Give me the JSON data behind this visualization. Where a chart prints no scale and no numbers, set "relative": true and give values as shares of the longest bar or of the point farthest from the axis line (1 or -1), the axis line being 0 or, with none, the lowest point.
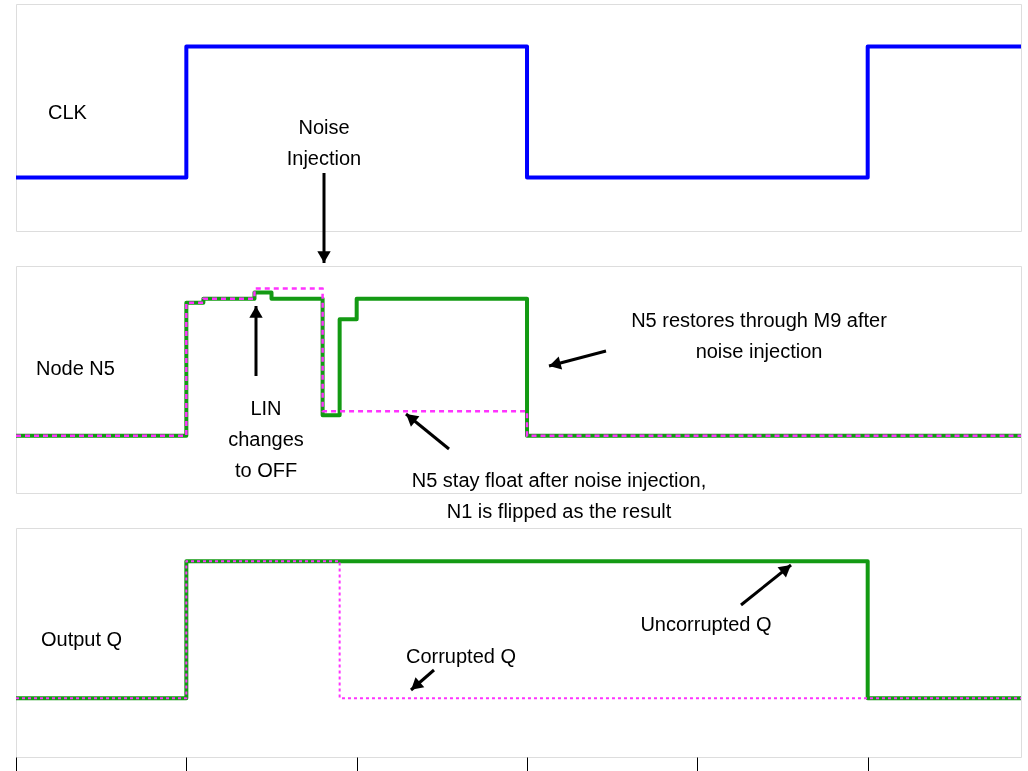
{
  "chart_data": [
    {
      "type": "step",
      "relative": true,
      "tick_labels": false,
      "categories": [
        null,
        null,
        null,
        null,
        null,
        null,
        null,
        null,
        null,
        null,
        null,
        null,
        null,
        null,
        null,
        null,
        null,
        null,
        null,
        null,
        null,
        null,
        null,
        null,
        null,
        null,
        null,
        null,
        null,
        null,
        null,
        null,
        null,
        null,
        null,
        null,
        null,
        null,
        null,
        null,
        null,
        null,
        null,
        null,
        null,
        null,
        null,
        null,
        null,
        null,
        null,
        null,
        null,
        null,
        null,
        null,
        null,
        null,
        null,
        null
      ],
      "series": [
        {
          "color": "#0000ff",
          "line_style": "solid",
          "values": [
            0.29,
            0.29,
            0.29,
            0.29,
            0.29,
            0.29,
            0.29,
            0.29,
            0.29,
            0.29,
            1,
            1,
            1,
            1,
            1,
            1,
            1,
            1,
            1,
            1,
            1,
            1,
            1,
            1,
            1,
            1,
            1,
            1,
            1,
            1,
            0.29,
            0.29,
            0.29,
            0.29,
            0.29,
            0.29,
            0.29,
            0.29,
            0.29,
            0.29,
            0.29,
            0.29,
            0.29,
            0.29,
            0.29,
            0.29,
            0.29,
            0.29,
            0.29,
            0.29,
            1,
            1,
            1,
            1,
            1,
            1,
            1,
            1,
            1,
            1
          ]
        }
      ],
      "annotations": [
        "CLK",
        "Noise\nInjection"
      ]
    },
    {
      "type": "step",
      "relative": true,
      "tick_labels": false,
      "categories": [
        null,
        null,
        null,
        null,
        null,
        null,
        null,
        null,
        null,
        null,
        null,
        null,
        null,
        null,
        null,
        null,
        null,
        null,
        null,
        null,
        null,
        null,
        null,
        null,
        null,
        null,
        null,
        null,
        null,
        null,
        null,
        null,
        null,
        null,
        null,
        null,
        null,
        null,
        null,
        null,
        null,
        null,
        null,
        null,
        null,
        null,
        null,
        null,
        null,
        null,
        null,
        null,
        null,
        null,
        null,
        null,
        null,
        null,
        null,
        null
      ],
      "series": [
        {
          "color": "#139a13",
          "line_style": "solid",
          "values": [
            0.28,
            0.28,
            0.28,
            0.28,
            0.28,
            0.28,
            0.28,
            0.28,
            0.28,
            0.28,
            0.93,
            0.95,
            0.95,
            0.95,
            0.98,
            0.95,
            0.95,
            0.95,
            0.38,
            0.85,
            0.95,
            0.95,
            0.95,
            0.95,
            0.95,
            0.95,
            0.95,
            0.95,
            0.95,
            0.95,
            0.28,
            0.28,
            0.28,
            0.28,
            0.28,
            0.28,
            0.28,
            0.28,
            0.28,
            0.28,
            0.28,
            0.28,
            0.28,
            0.28,
            0.28,
            0.28,
            0.28,
            0.28,
            0.28,
            0.28,
            0.28,
            0.28,
            0.28,
            0.28,
            0.28,
            0.28,
            0.28,
            0.28,
            0.28,
            0.28
          ]
        },
        {
          "color": "#ff33ff",
          "line_style": "dashed",
          "values": [
            0.28,
            0.28,
            0.28,
            0.28,
            0.28,
            0.28,
            0.28,
            0.28,
            0.28,
            0.28,
            0.93,
            0.95,
            0.95,
            0.95,
            1,
            1,
            1,
            1,
            0.4,
            0.4,
            0.4,
            0.4,
            0.4,
            0.4,
            0.4,
            0.4,
            0.4,
            0.4,
            0.4,
            0.4,
            0.28,
            0.28,
            0.28,
            0.28,
            0.28,
            0.28,
            0.28,
            0.28,
            0.28,
            0.28,
            0.28,
            0.28,
            0.28,
            0.28,
            0.28,
            0.28,
            0.28,
            0.28,
            0.28,
            0.28,
            0.28,
            0.28,
            0.28,
            0.28,
            0.28,
            0.28,
            0.28,
            0.28,
            0.28,
            0.28
          ]
        }
      ],
      "annotations": [
        "Node N5",
        "LIN\nchanges\nto OFF",
        "N5 restores through M9 after\nnoise injection",
        "N5 stay float after noise injection,\nN1 is flipped as the result"
      ]
    },
    {
      "type": "step",
      "relative": true,
      "tick_labels": false,
      "categories": [
        null,
        null,
        null,
        null,
        null,
        null,
        null,
        null,
        null,
        null,
        null,
        null,
        null,
        null,
        null,
        null,
        null,
        null,
        null,
        null,
        null,
        null,
        null,
        null,
        null,
        null,
        null,
        null,
        null,
        null,
        null,
        null,
        null,
        null,
        null,
        null,
        null,
        null,
        null,
        null,
        null,
        null,
        null,
        null,
        null,
        null,
        null,
        null,
        null,
        null,
        null,
        null,
        null,
        null,
        null,
        null,
        null,
        null,
        null,
        null
      ],
      "series": [
        {
          "color": "#139a13",
          "line_style": "solid",
          "values": [
            0.3,
            0.3,
            0.3,
            0.3,
            0.3,
            0.3,
            0.3,
            0.3,
            0.3,
            0.3,
            1,
            1,
            1,
            1,
            1,
            1,
            1,
            1,
            1,
            1,
            1,
            1,
            1,
            1,
            1,
            1,
            1,
            1,
            1,
            1,
            1,
            1,
            1,
            1,
            1,
            1,
            1,
            1,
            1,
            1,
            1,
            1,
            1,
            1,
            1,
            1,
            1,
            1,
            1,
            1,
            0.3,
            0.3,
            0.3,
            0.3,
            0.3,
            0.3,
            0.3,
            0.3,
            0.3,
            0.3
          ]
        },
        {
          "color": "#ff33ff",
          "line_style": "dotted",
          "values": [
            0.3,
            0.3,
            0.3,
            0.3,
            0.3,
            0.3,
            0.3,
            0.3,
            0.3,
            0.3,
            1,
            1,
            1,
            1,
            1,
            1,
            1,
            1,
            1,
            0.3,
            0.3,
            0.3,
            0.3,
            0.3,
            0.3,
            0.3,
            0.3,
            0.3,
            0.3,
            0.3,
            0.3,
            0.3,
            0.3,
            0.3,
            0.3,
            0.3,
            0.3,
            0.3,
            0.3,
            0.3,
            0.3,
            0.3,
            0.3,
            0.3,
            0.3,
            0.3,
            0.3,
            0.3,
            0.3,
            0.3,
            0.3,
            0.3,
            0.3,
            0.3,
            0.3,
            0.3,
            0.3,
            0.3,
            0.3,
            0.3
          ]
        }
      ],
      "annotations": [
        "Output Q",
        "Corrupted Q",
        "Uncorrupted Q"
      ]
    }
  ]
}
